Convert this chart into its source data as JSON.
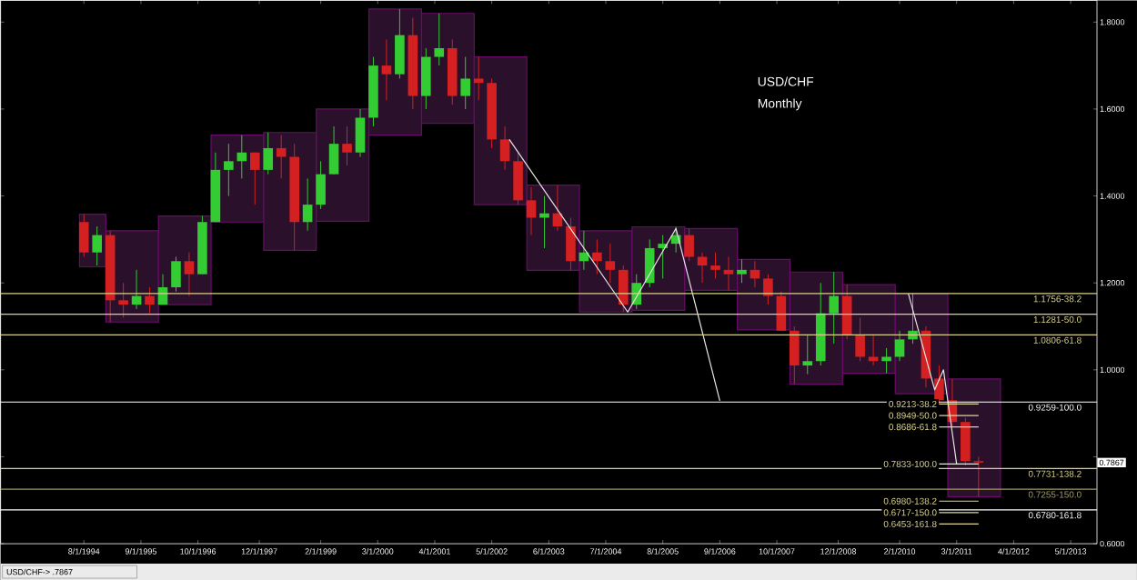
{
  "chart_data": {
    "type": "candlestick",
    "title": "USD/CHF",
    "subtitle": "Monthly",
    "xlim": [
      "1993-01",
      "2013-11"
    ],
    "ylim": [
      0.6,
      1.85
    ],
    "xticks": [
      {
        "value": "1994-08",
        "label": "8/1/1994"
      },
      {
        "value": "1995-09",
        "label": "9/1/1995"
      },
      {
        "value": "1996-10",
        "label": "10/1/1996"
      },
      {
        "value": "1997-12",
        "label": "12/1/1997"
      },
      {
        "value": "1999-02",
        "label": "2/1/1999"
      },
      {
        "value": "2000-03",
        "label": "3/1/2000"
      },
      {
        "value": "2001-04",
        "label": "4/1/2001"
      },
      {
        "value": "2002-05",
        "label": "5/1/2002"
      },
      {
        "value": "2003-06",
        "label": "6/1/2003"
      },
      {
        "value": "2004-07",
        "label": "7/1/2004"
      },
      {
        "value": "2005-08",
        "label": "8/1/2005"
      },
      {
        "value": "2006-09",
        "label": "9/1/2006"
      },
      {
        "value": "2007-10",
        "label": "10/1/2007"
      },
      {
        "value": "2008-12",
        "label": "12/1/2008"
      },
      {
        "value": "2010-02",
        "label": "2/1/2010"
      },
      {
        "value": "2011-03",
        "label": "3/1/2011"
      },
      {
        "value": "2012-04",
        "label": "4/1/2012"
      },
      {
        "value": "2013-05",
        "label": "5/1/2013"
      }
    ],
    "yticks": [
      {
        "value": 0.6,
        "label": "0.6000"
      },
      {
        "value": 0.8,
        "label": null
      },
      {
        "value": 1.0,
        "label": "1.0000"
      },
      {
        "value": 1.2,
        "label": "1.2000"
      },
      {
        "value": 1.4,
        "label": "1.4000"
      },
      {
        "value": 1.6,
        "label": "1.6000"
      },
      {
        "value": 1.8,
        "label": "1.8000"
      }
    ],
    "series": [
      {
        "type": "bar",
        "color": "#2a102a",
        "x": [
          "1994-10",
          "1995-07",
          "1996-07",
          "1997-07",
          "1998-07",
          "1999-07",
          "2000-07",
          "2001-07",
          "2002-07",
          "2003-07",
          "2004-07",
          "2005-07",
          "2006-07",
          "2007-07",
          "2008-07",
          "2009-07",
          "2010-07",
          "2011-07"
        ],
        "base": [
          1.237,
          1.11,
          1.15,
          1.34,
          1.275,
          1.342,
          1.54,
          1.567,
          1.38,
          1.229,
          1.133,
          1.137,
          1.183,
          1.092,
          0.967,
          0.992,
          0.945,
          0.708
        ],
        "values": [
          0.121,
          0.21,
          0.204,
          0.2,
          0.271,
          0.258,
          0.29,
          0.253,
          0.34,
          0.196,
          0.187,
          0.192,
          0.142,
          0.162,
          0.258,
          0.204,
          0.23,
          0.271
        ]
      },
      {
        "color": "#33cc33",
        "x": [
          "1994-11",
          "1995-08",
          "1996-02",
          "1996-05",
          "1996-11",
          "1997-02",
          "1997-05",
          "1997-08",
          "1998-02",
          "1998-11",
          "1999-02",
          "1999-05",
          "1999-11",
          "2000-02",
          "2000-08",
          "2001-02",
          "2001-05",
          "2001-11",
          "2003-05",
          "2004-02",
          "2005-02",
          "2005-05",
          "2005-08",
          "2005-11",
          "2007-02",
          "2008-05",
          "2008-08",
          "2008-11",
          "2009-11",
          "2010-02",
          "2010-05"
        ],
        "ohlc": [
          [
            1.27,
            1.33,
            1.24,
            1.31
          ],
          [
            1.15,
            1.23,
            1.14,
            1.17
          ],
          [
            1.15,
            1.22,
            1.15,
            1.19
          ],
          [
            1.19,
            1.26,
            1.18,
            1.25
          ],
          [
            1.22,
            1.354,
            1.22,
            1.34
          ],
          [
            1.34,
            1.5,
            1.34,
            1.46
          ],
          [
            1.46,
            1.52,
            1.4,
            1.48
          ],
          [
            1.48,
            1.54,
            1.44,
            1.5
          ],
          [
            1.46,
            1.546,
            1.45,
            1.51
          ],
          [
            1.34,
            1.44,
            1.32,
            1.38
          ],
          [
            1.38,
            1.48,
            1.37,
            1.45
          ],
          [
            1.45,
            1.56,
            1.45,
            1.52
          ],
          [
            1.5,
            1.6,
            1.49,
            1.58
          ],
          [
            1.58,
            1.72,
            1.56,
            1.7
          ],
          [
            1.68,
            1.83,
            1.67,
            1.77
          ],
          [
            1.63,
            1.74,
            1.6,
            1.72
          ],
          [
            1.72,
            1.82,
            1.7,
            1.74
          ],
          [
            1.63,
            1.72,
            1.6,
            1.67
          ],
          [
            1.35,
            1.4,
            1.28,
            1.36
          ],
          [
            1.25,
            1.32,
            1.23,
            1.27
          ],
          [
            1.15,
            1.22,
            1.14,
            1.2
          ],
          [
            1.2,
            1.3,
            1.19,
            1.28
          ],
          [
            1.28,
            1.31,
            1.21,
            1.29
          ],
          [
            1.29,
            1.329,
            1.27,
            1.31
          ],
          [
            1.22,
            1.254,
            1.2,
            1.23
          ],
          [
            1.01,
            1.08,
            0.99,
            1.02
          ],
          [
            1.02,
            1.2,
            1.01,
            1.13
          ],
          [
            1.13,
            1.225,
            1.06,
            1.17
          ],
          [
            1.02,
            1.05,
            0.992,
            1.03
          ],
          [
            1.03,
            1.09,
            1.02,
            1.07
          ],
          [
            1.07,
            1.175,
            1.06,
            1.09
          ]
        ]
      },
      {
        "color": "#d42020",
        "x": [
          "1994-08",
          "1995-02",
          "1995-05",
          "1995-11",
          "1996-08",
          "1997-11",
          "1998-05",
          "1998-08",
          "1999-08",
          "2000-05",
          "2000-11",
          "2001-08",
          "2002-02",
          "2002-05",
          "2002-08",
          "2002-11",
          "2003-02",
          "2003-08",
          "2003-11",
          "2004-05",
          "2004-08",
          "2004-11",
          "2006-02",
          "2006-05",
          "2006-08",
          "2006-11",
          "2007-05",
          "2007-08",
          "2007-11",
          "2008-02",
          "2009-02",
          "2009-05",
          "2009-08",
          "2010-08",
          "2010-11",
          "2011-02",
          "2011-05",
          "2011-08"
        ],
        "ohlc": [
          [
            1.34,
            1.358,
            1.26,
            1.27
          ],
          [
            1.31,
            1.32,
            1.11,
            1.16
          ],
          [
            1.16,
            1.2,
            1.12,
            1.15
          ],
          [
            1.17,
            1.19,
            1.13,
            1.15
          ],
          [
            1.25,
            1.27,
            1.17,
            1.22
          ],
          [
            1.5,
            1.5,
            1.38,
            1.46
          ],
          [
            1.51,
            1.54,
            1.44,
            1.49
          ],
          [
            1.49,
            1.52,
            1.275,
            1.34
          ],
          [
            1.52,
            1.56,
            1.47,
            1.5
          ],
          [
            1.7,
            1.76,
            1.62,
            1.68
          ],
          [
            1.77,
            1.81,
            1.6,
            1.63
          ],
          [
            1.74,
            1.76,
            1.61,
            1.63
          ],
          [
            1.67,
            1.72,
            1.62,
            1.66
          ],
          [
            1.66,
            1.67,
            1.51,
            1.53
          ],
          [
            1.53,
            1.56,
            1.46,
            1.48
          ],
          [
            1.48,
            1.5,
            1.38,
            1.39
          ],
          [
            1.39,
            1.42,
            1.31,
            1.35
          ],
          [
            1.36,
            1.425,
            1.32,
            1.33
          ],
          [
            1.33,
            1.35,
            1.229,
            1.25
          ],
          [
            1.27,
            1.3,
            1.22,
            1.25
          ],
          [
            1.25,
            1.29,
            1.2,
            1.23
          ],
          [
            1.23,
            1.24,
            1.133,
            1.15
          ],
          [
            1.31,
            1.325,
            1.25,
            1.26
          ],
          [
            1.26,
            1.27,
            1.2,
            1.24
          ],
          [
            1.24,
            1.27,
            1.21,
            1.23
          ],
          [
            1.23,
            1.26,
            1.183,
            1.22
          ],
          [
            1.23,
            1.25,
            1.19,
            1.21
          ],
          [
            1.21,
            1.22,
            1.15,
            1.17
          ],
          [
            1.17,
            1.18,
            1.09,
            1.09
          ],
          [
            1.09,
            1.1,
            0.967,
            1.01
          ],
          [
            1.17,
            1.196,
            1.07,
            1.08
          ],
          [
            1.08,
            1.12,
            1.02,
            1.03
          ],
          [
            1.03,
            1.08,
            1.01,
            1.02
          ],
          [
            1.09,
            1.1,
            0.96,
            0.98
          ],
          [
            0.98,
            1.01,
            0.92,
            0.93
          ],
          [
            0.93,
            0.979,
            0.87,
            0.88
          ],
          [
            0.88,
            0.89,
            0.78,
            0.79
          ],
          [
            0.79,
            0.8,
            0.708,
            0.7867
          ]
        ]
      },
      {
        "type": "line",
        "color": "#e6e6e6",
        "x": [
          "2002-09",
          "2004-12",
          "2005-11",
          "2006-09"
        ],
        "values": [
          1.53,
          1.133,
          1.325,
          0.929
        ]
      },
      {
        "type": "line",
        "color": "#e6e6e6",
        "x": [
          "2010-04",
          "2010-10",
          "2010-12",
          "2011-03"
        ],
        "values": [
          1.175,
          0.954,
          1.0,
          0.783
        ]
      },
      {
        "type": "line",
        "color": "#e0d890",
        "x": [
          "2010-11",
          "2011-08"
        ],
        "values": [
          0.9213,
          0.9213
        ]
      },
      {
        "type": "line",
        "color": "#e0d890",
        "x": [
          "2010-11",
          "2011-08"
        ],
        "values": [
          0.8949,
          0.8949
        ]
      },
      {
        "type": "line",
        "color": "#e0d890",
        "x": [
          "2010-11",
          "2011-08"
        ],
        "values": [
          0.8686,
          0.8686
        ]
      },
      {
        "type": "line",
        "color": "#e6e6e6",
        "x": [
          "2010-11",
          "2011-08"
        ],
        "values": [
          0.7833,
          0.7833
        ]
      },
      {
        "type": "line",
        "color": "#e0d890",
        "x": [
          "2010-11",
          "2011-08"
        ],
        "values": [
          0.698,
          0.698
        ]
      },
      {
        "type": "line",
        "color": "#e0d890",
        "x": [
          "2010-11",
          "2011-08"
        ],
        "values": [
          0.6717,
          0.6717
        ]
      },
      {
        "type": "line",
        "color": "#e0d890",
        "x": [
          "2010-11",
          "2011-08"
        ],
        "values": [
          0.6453,
          0.6453
        ]
      }
    ],
    "ref_lines": [
      {
        "axis": "y",
        "value": 1.1756,
        "label": "1.1756-38.2",
        "color": "#d8d08c"
      },
      {
        "axis": "y",
        "value": 1.1281,
        "label": "1.1281-50.0",
        "color": "#d8d08c"
      },
      {
        "axis": "y",
        "value": 1.0806,
        "label": "1.0806-61.8",
        "color": "#d8d08c"
      },
      {
        "axis": "y",
        "value": 0.9259,
        "label": "0.9259-100.0",
        "color": "#ffffff"
      },
      {
        "axis": "y",
        "value": 0.7731,
        "label": "0.7731-138.2",
        "color": "#d8d08c"
      },
      {
        "axis": "y",
        "value": 0.7255,
        "label": "0.7255-150.0",
        "color": "#a09a6a"
      },
      {
        "axis": "y",
        "value": 0.678,
        "label": "0.6780-161.8",
        "color": "#ffffff"
      }
    ],
    "annotations": [
      {
        "text": "0.9213-38.2",
        "x": "2010-11",
        "y": 0.9213
      },
      {
        "text": "0.8949-50.0",
        "x": "2010-11",
        "y": 0.8949
      },
      {
        "text": "0.8686-61.8",
        "x": "2010-11",
        "y": 0.8686
      },
      {
        "text": "0.7833-100.0",
        "x": "2010-11",
        "y": 0.7833
      },
      {
        "text": "0.6980-138.2",
        "x": "2010-11",
        "y": 0.698
      },
      {
        "text": "0.6717-150.0",
        "x": "2010-11",
        "y": 0.6717
      },
      {
        "text": "0.6453-161.8",
        "x": "2010-11",
        "y": 0.6453
      },
      {
        "text": "0.7867",
        "y": 0.7867
      },
      "USD/CHF-> .7867"
    ]
  }
}
